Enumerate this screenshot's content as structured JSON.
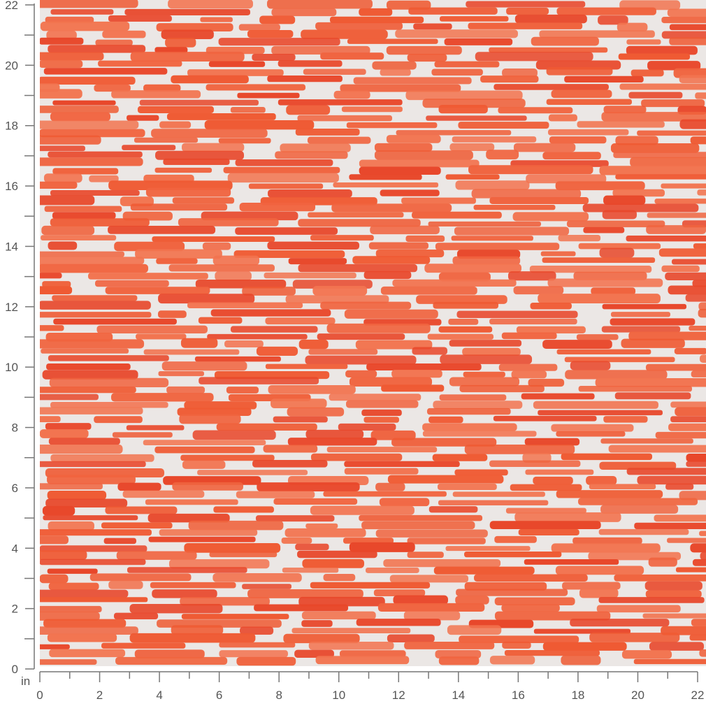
{
  "ruler": {
    "unit": "in",
    "x_axis": {
      "min": 0,
      "max": 22,
      "labels": [
        "0",
        "2",
        "4",
        "6",
        "8",
        "10",
        "12",
        "14",
        "16",
        "18",
        "20",
        "22"
      ]
    },
    "y_axis": {
      "min": 0,
      "max": 22,
      "labels": [
        "0",
        "2",
        "4",
        "6",
        "8",
        "10",
        "12",
        "14",
        "16",
        "18",
        "20",
        "22"
      ]
    }
  },
  "swatch": {
    "pattern": "horizontal brush-stroke dashes",
    "background_color": "#ebe7e5",
    "stroke_colors": [
      "#ef5a33",
      "#f0643f",
      "#e8472a",
      "#f27450"
    ]
  }
}
